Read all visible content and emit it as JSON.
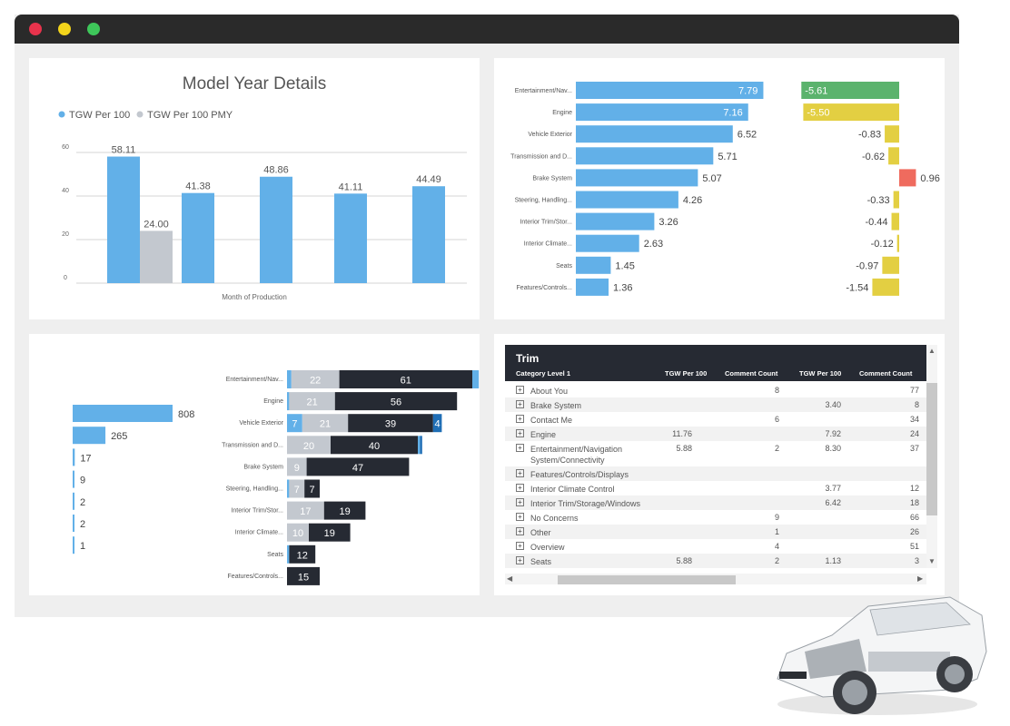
{
  "window": {
    "colors": {
      "close": "#e8334c",
      "minimize": "#f3d41b",
      "maximize": "#3ec75a"
    }
  },
  "colors": {
    "blue": "#62b0e8",
    "gray": "#c3c8cf",
    "dark": "#262a33",
    "green": "#5bb36d",
    "yellow": "#e3cf42",
    "red": "#ef6b5e",
    "deep_blue": "#1f6eb5"
  },
  "model_year": {
    "chart_data": {
      "type": "bar",
      "title": "Model Year Details",
      "xlabel": "Month of Production",
      "ylabel": "",
      "ylim": [
        0,
        60
      ],
      "yticks": [
        "0",
        "20",
        "40",
        "60"
      ],
      "legend": [
        "TGW Per 100",
        "TGW Per 100 PMY"
      ],
      "series": [
        {
          "name": "TGW Per 100",
          "values": [
            58.11,
            41.38,
            48.86,
            41.11,
            44.49
          ],
          "labels": [
            "58.11",
            "41.38",
            "48.86",
            "41.11",
            "44.49"
          ]
        },
        {
          "name": "TGW Per 100 PMY",
          "values": [
            24.0,
            null,
            null,
            null,
            null
          ],
          "labels": [
            "24.00",
            "",
            "",
            "",
            ""
          ]
        }
      ]
    }
  },
  "categories_chart": {
    "chart_data": {
      "type": "bar",
      "categories": [
        "Entertainment/Nav...",
        "Engine",
        "Vehicle Exterior",
        "Transmission and D...",
        "Brake System",
        "Steering, Handling...",
        "Interior Trim/Stor...",
        "Interior Climate...",
        "Seats",
        "Features/Controls..."
      ],
      "values": [
        7.79,
        7.16,
        6.52,
        5.71,
        5.07,
        4.26,
        3.26,
        2.63,
        1.45,
        1.36
      ],
      "value_labels": [
        "7.79",
        "7.16",
        "6.52",
        "5.71",
        "5.07",
        "4.26",
        "3.26",
        "2.63",
        "1.45",
        "1.36"
      ],
      "delta": [
        -5.61,
        -5.5,
        -0.83,
        -0.62,
        0.96,
        -0.33,
        -0.44,
        -0.12,
        -0.97,
        -1.54
      ],
      "delta_labels": [
        "-5.61",
        "-5.50",
        "-0.83",
        "-0.62",
        "0.96",
        "-0.33",
        "-0.44",
        "-0.12",
        "-0.97",
        "-1.54"
      ]
    }
  },
  "counts_chart": {
    "chart_data": {
      "type": "bar",
      "values": [
        808,
        265,
        17,
        9,
        2,
        2,
        1
      ],
      "labels": [
        "808",
        "265",
        "17",
        "9",
        "2",
        "2",
        "1"
      ]
    }
  },
  "stacked_chart": {
    "chart_data": {
      "type": "bar",
      "stacked": true,
      "categories": [
        "Entertainment/Nav...",
        "Engine",
        "Vehicle Exterior",
        "Transmission and D...",
        "Brake System",
        "Steering, Handling...",
        "Interior Trim/Stor...",
        "Interior Climate...",
        "Seats",
        "Features/Controls..."
      ],
      "rows": [
        [
          {
            "v": 2,
            "c": "blue"
          },
          {
            "v": 22,
            "c": "gray",
            "label": "22"
          },
          {
            "v": 61,
            "c": "dark",
            "label": "61"
          },
          {
            "v": 3,
            "c": "blue"
          }
        ],
        [
          {
            "v": 1,
            "c": "blue"
          },
          {
            "v": 21,
            "c": "gray",
            "label": "21"
          },
          {
            "v": 56,
            "c": "dark",
            "label": "56"
          }
        ],
        [
          {
            "v": 7,
            "c": "blue",
            "label": "7"
          },
          {
            "v": 21,
            "c": "gray",
            "label": "21"
          },
          {
            "v": 39,
            "c": "dark",
            "label": "39"
          },
          {
            "v": 4,
            "c": "deep_blue",
            "label": "4"
          }
        ],
        [
          {
            "v": 20,
            "c": "gray",
            "label": "20"
          },
          {
            "v": 40,
            "c": "dark",
            "label": "40"
          },
          {
            "v": 1,
            "c": "blue"
          },
          {
            "v": 1,
            "c": "deep_blue"
          }
        ],
        [
          {
            "v": 9,
            "c": "gray",
            "label": "9"
          },
          {
            "v": 47,
            "c": "dark",
            "label": "47"
          }
        ],
        [
          {
            "v": 1,
            "c": "blue"
          },
          {
            "v": 7,
            "c": "gray",
            "label": "7"
          },
          {
            "v": 7,
            "c": "dark",
            "label": "7"
          }
        ],
        [
          {
            "v": 17,
            "c": "gray",
            "label": "17"
          },
          {
            "v": 19,
            "c": "dark",
            "label": "19"
          }
        ],
        [
          {
            "v": 10,
            "c": "gray",
            "label": "10"
          },
          {
            "v": 19,
            "c": "dark",
            "label": "19"
          }
        ],
        [
          {
            "v": 1,
            "c": "blue"
          },
          {
            "v": 12,
            "c": "dark",
            "label": "12"
          }
        ],
        [
          {
            "v": 15,
            "c": "dark",
            "label": "15"
          }
        ]
      ]
    }
  },
  "trim_table": {
    "title": "Trim",
    "columns": [
      "Category Level 1",
      "TGW Per 100",
      "Comment Count",
      "TGW Per 100",
      "Comment Count"
    ],
    "rows": [
      [
        "About You",
        "",
        "8",
        "",
        "77"
      ],
      [
        "Brake System",
        "",
        "",
        "3.40",
        "8"
      ],
      [
        "Contact Me",
        "",
        "6",
        "",
        "34"
      ],
      [
        "Engine",
        "11.76",
        "",
        "7.92",
        "24"
      ],
      [
        "Entertainment/Navigation System/Connectivity",
        "5.88",
        "2",
        "8.30",
        "37"
      ],
      [
        "Features/Controls/Displays",
        "",
        "",
        "",
        ""
      ],
      [
        "Interior Climate Control",
        "",
        "",
        "3.77",
        "12"
      ],
      [
        "Interior Trim/Storage/Windows",
        "",
        "",
        "6.42",
        "18"
      ],
      [
        "No Concerns",
        "",
        "9",
        "",
        "66"
      ],
      [
        "Other",
        "",
        "1",
        "",
        "26"
      ],
      [
        "Overview",
        "",
        "4",
        "",
        "51"
      ],
      [
        "Seats",
        "5.88",
        "2",
        "1.13",
        "3"
      ]
    ],
    "expand_glyph": "+",
    "scroll_up": "▲",
    "scroll_down": "▼",
    "scroll_left": "◀",
    "scroll_right": "▶"
  }
}
